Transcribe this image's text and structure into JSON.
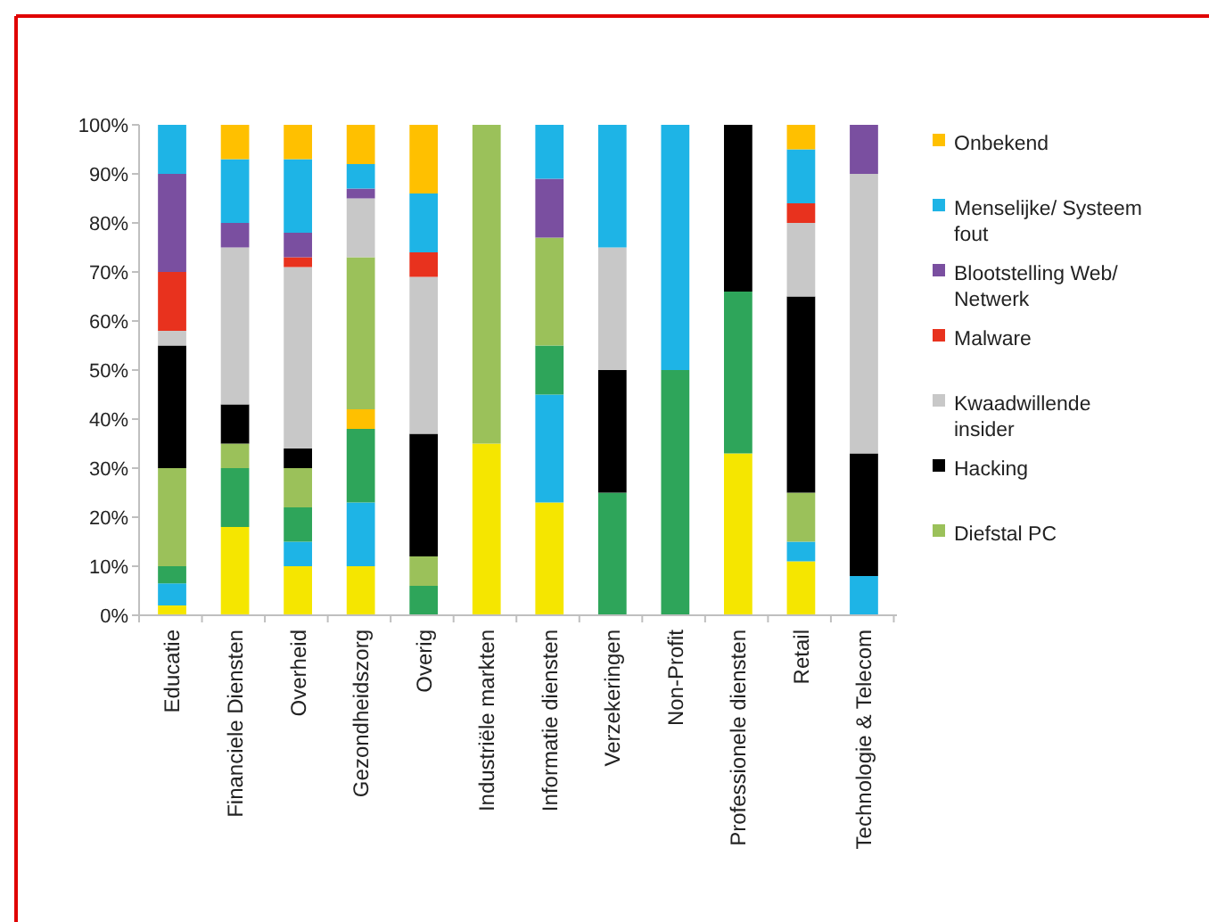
{
  "chart_data": {
    "type": "bar",
    "stacked": true,
    "legend": "right",
    "grid": false,
    "categories": [
      "Educatie",
      "Financiele Diensten",
      "Overheid",
      "Gezondheidszorg",
      "Overig",
      "Industriële markten",
      "Informatie diensten",
      "Verzekeringen",
      "Non-Profit",
      "Professionele diensten",
      "Retail",
      "Technologie & Telecom"
    ],
    "ylim": [
      0,
      100
    ],
    "yticks": [
      {
        "value": 0,
        "label": "0%"
      },
      {
        "value": 10,
        "label": "10%"
      },
      {
        "value": 20,
        "label": "20%"
      },
      {
        "value": 30,
        "label": "30%"
      },
      {
        "value": 40,
        "label": "40%"
      },
      {
        "value": 50,
        "label": "50%"
      },
      {
        "value": 60,
        "label": "60%"
      },
      {
        "value": 70,
        "label": "70%"
      },
      {
        "value": 80,
        "label": "80%"
      },
      {
        "value": 90,
        "label": "90%"
      },
      {
        "value": 100,
        "label": "100%"
      }
    ],
    "series": [
      {
        "color": "#f5e600",
        "values": [
          2,
          18,
          10,
          10,
          0,
          35,
          23,
          0,
          0,
          33,
          11,
          0
        ]
      },
      {
        "color": "#1eb4e6",
        "values": [
          4.5,
          0,
          5,
          13,
          0,
          0,
          22,
          0,
          0,
          0,
          4,
          8
        ]
      },
      {
        "color": "#2ea55a",
        "values": [
          3.5,
          12,
          7,
          15,
          6,
          0,
          10,
          25,
          50,
          33,
          0,
          0
        ]
      },
      {
        "color": "#ffc000",
        "values": [
          0,
          0,
          0,
          4,
          0,
          0,
          0,
          0,
          0,
          0,
          0,
          0
        ]
      },
      {
        "name": "Diefstal PC",
        "color": "#9bc15a",
        "values": [
          20,
          5,
          8,
          31,
          6,
          65,
          22,
          0,
          0,
          0,
          10,
          0
        ]
      },
      {
        "name": "Hacking",
        "color": "#000000",
        "values": [
          25,
          8,
          4,
          0,
          25,
          0,
          0,
          25,
          0,
          34,
          40,
          25
        ]
      },
      {
        "name": "Kwaadwillende insider",
        "color": "#c8c8c8",
        "values": [
          3,
          32,
          37,
          12,
          32,
          0,
          0,
          25,
          0,
          0,
          15,
          57
        ]
      },
      {
        "name": "Malware",
        "color": "#e8321e",
        "values": [
          12,
          0,
          2,
          0,
          5,
          0,
          0,
          0,
          0,
          0,
          4,
          0
        ]
      },
      {
        "name": "Blootstelling Web/ Netwerk",
        "color": "#7a4fa0",
        "values": [
          20,
          5,
          5,
          2,
          0,
          0,
          12,
          0,
          0,
          0,
          0,
          10
        ]
      },
      {
        "name": "Menselijke/ Systeem fout",
        "color": "#1eb4e6",
        "values": [
          10,
          13,
          15,
          5,
          12,
          0,
          11,
          25,
          50,
          0,
          11,
          0
        ]
      },
      {
        "name": "Onbekend",
        "color": "#ffc000",
        "values": [
          0,
          7,
          7,
          8,
          14,
          0,
          0,
          0,
          0,
          0,
          5,
          0
        ]
      }
    ]
  }
}
